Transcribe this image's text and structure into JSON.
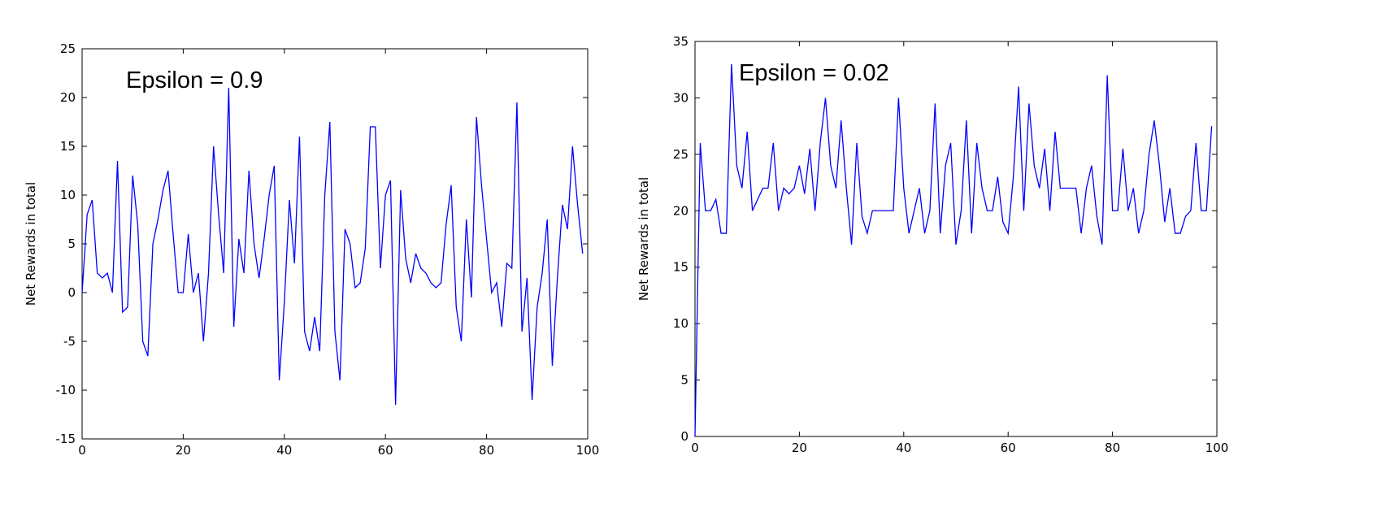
{
  "chart_data": [
    {
      "type": "line",
      "ylabel": "Net Rewards in total",
      "annotation": "Epsilon = 0.9",
      "x": [
        0,
        1,
        2,
        3,
        4,
        5,
        6,
        7,
        8,
        9,
        10,
        11,
        12,
        13,
        14,
        15,
        16,
        17,
        18,
        19,
        20,
        21,
        22,
        23,
        24,
        25,
        26,
        27,
        28,
        29,
        30,
        31,
        32,
        33,
        34,
        35,
        36,
        37,
        38,
        39,
        40,
        41,
        42,
        43,
        44,
        45,
        46,
        47,
        48,
        49,
        50,
        51,
        52,
        53,
        54,
        55,
        56,
        57,
        58,
        59,
        60,
        61,
        62,
        63,
        64,
        65,
        66,
        67,
        68,
        69,
        70,
        71,
        72,
        73,
        74,
        75,
        76,
        77,
        78,
        79,
        80,
        81,
        82,
        83,
        84,
        85,
        86,
        87,
        88,
        89,
        90,
        91,
        92,
        93,
        94,
        95,
        96,
        97,
        98,
        99
      ],
      "series": [
        {
          "name": "Epsilon = 0.9",
          "color": "#0000ff",
          "values": [
            0,
            8,
            9.5,
            2,
            1.5,
            2,
            0,
            13.5,
            -2,
            -1.5,
            12,
            7,
            -5,
            -6.5,
            5,
            7.5,
            10.5,
            12.5,
            6,
            0,
            0,
            6,
            0,
            2,
            -5,
            2,
            15,
            8,
            2,
            21,
            -3.5,
            5.5,
            2,
            12.5,
            5,
            1.5,
            5.5,
            10,
            13,
            -9,
            -1,
            9.5,
            3,
            16,
            -4,
            -6,
            -2.5,
            -6,
            10,
            17.5,
            -4,
            -9,
            6.5,
            5,
            0.5,
            1,
            4.5,
            17,
            17,
            2.5,
            10,
            11.5,
            -11.5,
            10.5,
            3.5,
            1,
            4,
            2.5,
            2,
            1,
            0.5,
            1,
            7,
            11,
            -1.5,
            -5,
            7.5,
            -0.5,
            18,
            11,
            5.5,
            0,
            1,
            -3.5,
            3,
            2.5,
            19.5,
            -4,
            1.5,
            -11,
            -1.5,
            2,
            7.5,
            -7.5,
            1.5,
            9,
            6.5,
            15,
            9,
            4
          ]
        }
      ],
      "xlim": [
        0,
        100
      ],
      "xticks": [
        0,
        20,
        40,
        60,
        80,
        100
      ],
      "ylim": [
        -15,
        25
      ],
      "yticks": [
        -15,
        -10,
        -5,
        0,
        5,
        10,
        15,
        20,
        25
      ],
      "grid": false
    },
    {
      "type": "line",
      "ylabel": "Net Rewards in total",
      "annotation": "Epsilon = 0.02",
      "x": [
        0,
        1,
        2,
        3,
        4,
        5,
        6,
        7,
        8,
        9,
        10,
        11,
        12,
        13,
        14,
        15,
        16,
        17,
        18,
        19,
        20,
        21,
        22,
        23,
        24,
        25,
        26,
        27,
        28,
        29,
        30,
        31,
        32,
        33,
        34,
        35,
        36,
        37,
        38,
        39,
        40,
        41,
        42,
        43,
        44,
        45,
        46,
        47,
        48,
        49,
        50,
        51,
        52,
        53,
        54,
        55,
        56,
        57,
        58,
        59,
        60,
        61,
        62,
        63,
        64,
        65,
        66,
        67,
        68,
        69,
        70,
        71,
        72,
        73,
        74,
        75,
        76,
        77,
        78,
        79,
        80,
        81,
        82,
        83,
        84,
        85,
        86,
        87,
        88,
        89,
        90,
        91,
        92,
        93,
        94,
        95,
        96,
        97,
        98,
        99
      ],
      "series": [
        {
          "name": "Epsilon = 0.02",
          "color": "#0000ff",
          "values": [
            0,
            26,
            20,
            20,
            21,
            18,
            18,
            33,
            24,
            22,
            27,
            20,
            21,
            22,
            22,
            26,
            20,
            22,
            21.5,
            22,
            24,
            21.5,
            25.5,
            20,
            26,
            30,
            24,
            22,
            28,
            22,
            17,
            26,
            19.5,
            18,
            20,
            20,
            20,
            20,
            20,
            30,
            22,
            18,
            20,
            22,
            18,
            20,
            29.5,
            18,
            24,
            26,
            17,
            20,
            28,
            18,
            26,
            22,
            20,
            20,
            23,
            19,
            18,
            23,
            31,
            20,
            29.5,
            24,
            22,
            25.5,
            20,
            27,
            22,
            22,
            22,
            22,
            18,
            22,
            24,
            19.5,
            17,
            32,
            20,
            20,
            25.5,
            20,
            22,
            18,
            20,
            25,
            28,
            24,
            19,
            22,
            18,
            18,
            19.5,
            20,
            26,
            20,
            20,
            27.5
          ]
        }
      ],
      "xlim": [
        0,
        100
      ],
      "xticks": [
        0,
        20,
        40,
        60,
        80,
        100
      ],
      "ylim": [
        0,
        35
      ],
      "yticks": [
        0,
        5,
        10,
        15,
        20,
        25,
        30,
        35
      ],
      "grid": false
    }
  ]
}
